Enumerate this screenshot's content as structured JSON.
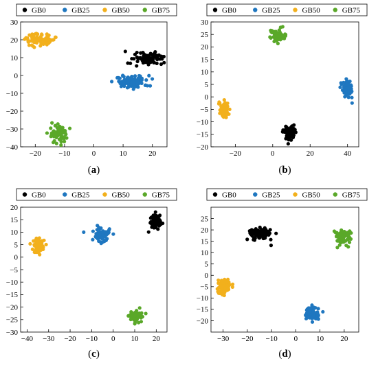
{
  "legend_items": [
    {
      "label": "GB0",
      "color": "#000000"
    },
    {
      "label": "GB25",
      "color": "#1f77c0"
    },
    {
      "label": "GB50",
      "color": "#f2b01c"
    },
    {
      "label": "GB75",
      "color": "#5aa829"
    }
  ],
  "chart_data": [
    {
      "type": "scatter",
      "caption": "(a)",
      "xlim": [
        -25,
        25
      ],
      "ylim": [
        -40,
        30
      ],
      "xticks": [
        -20,
        -10,
        0,
        10,
        20
      ],
      "yticks": [
        -40,
        -30,
        -20,
        -10,
        0,
        10,
        20,
        30
      ],
      "series": [
        {
          "name": "GB0",
          "color": "#000000",
          "cluster": {
            "cx": 18,
            "cy": 9,
            "sx": 2.6,
            "sy": 1.7,
            "n": 90
          }
        },
        {
          "name": "GB25",
          "color": "#1f77c0",
          "cluster": {
            "cx": 13,
            "cy": -3.5,
            "sx": 2.8,
            "sy": 1.8,
            "n": 90
          }
        },
        {
          "name": "GB50",
          "color": "#f2b01c",
          "cluster": {
            "cx": -18.5,
            "cy": 20,
            "sx": 2.6,
            "sy": 1.6,
            "n": 90
          }
        },
        {
          "name": "GB75",
          "color": "#5aa829",
          "cluster": {
            "cx": -12,
            "cy": -33,
            "sx": 1.6,
            "sy": 2.1,
            "n": 70
          }
        }
      ]
    },
    {
      "type": "scatter",
      "caption": "(b)",
      "xlim": [
        -33,
        46
      ],
      "ylim": [
        -20,
        30
      ],
      "xticks": [
        -20,
        0,
        20,
        40
      ],
      "yticks": [
        -20,
        -15,
        -10,
        -5,
        0,
        5,
        10,
        15,
        20,
        25,
        30
      ],
      "series": [
        {
          "name": "GB0",
          "color": "#000000",
          "cluster": {
            "cx": 9,
            "cy": -14.5,
            "sx": 1.6,
            "sy": 1.6,
            "n": 70
          }
        },
        {
          "name": "GB25",
          "color": "#1f77c0",
          "cluster": {
            "cx": 39.5,
            "cy": 3,
            "sx": 1.6,
            "sy": 1.7,
            "n": 70
          }
        },
        {
          "name": "GB50",
          "color": "#f2b01c",
          "cluster": {
            "cx": -26,
            "cy": -5.5,
            "sx": 1.4,
            "sy": 1.6,
            "n": 70
          }
        },
        {
          "name": "GB75",
          "color": "#5aa829",
          "cluster": {
            "cx": 3,
            "cy": 24.5,
            "sx": 2.0,
            "sy": 1.3,
            "n": 70
          }
        }
      ]
    },
    {
      "type": "scatter",
      "caption": "(c)",
      "xlim": [
        -43,
        25
      ],
      "ylim": [
        -30,
        20
      ],
      "xticks": [
        -40,
        -30,
        -20,
        -10,
        0,
        10,
        20
      ],
      "yticks": [
        -30,
        -25,
        -20,
        -15,
        -10,
        -5,
        0,
        5,
        10,
        15,
        20
      ],
      "series": [
        {
          "name": "GB0",
          "color": "#000000",
          "cluster": {
            "cx": 19.5,
            "cy": 14.5,
            "sx": 1.4,
            "sy": 1.6,
            "n": 70
          }
        },
        {
          "name": "GB25",
          "color": "#1f77c0",
          "cluster": {
            "cx": -5.5,
            "cy": 8.5,
            "sx": 1.9,
            "sy": 1.7,
            "n": 70
          }
        },
        {
          "name": "GB50",
          "color": "#f2b01c",
          "cluster": {
            "cx": -34.5,
            "cy": 4.5,
            "sx": 1.5,
            "sy": 1.6,
            "n": 70
          }
        },
        {
          "name": "GB75",
          "color": "#5aa829",
          "cluster": {
            "cx": 10.5,
            "cy": -23.5,
            "sx": 1.7,
            "sy": 1.3,
            "n": 70
          }
        }
      ]
    },
    {
      "type": "scatter",
      "caption": "(d)",
      "xlim": [
        -35,
        26
      ],
      "ylim": [
        -25,
        30
      ],
      "xticks": [
        -30,
        -20,
        -10,
        0,
        10,
        20
      ],
      "yticks": [
        -20,
        -15,
        -10,
        -5,
        0,
        5,
        10,
        15,
        20,
        25
      ],
      "series": [
        {
          "name": "GB0",
          "color": "#000000",
          "cluster": {
            "cx": -15,
            "cy": 18.5,
            "sx": 2.2,
            "sy": 1.2,
            "n": 90
          }
        },
        {
          "name": "GB25",
          "color": "#1f77c0",
          "cluster": {
            "cx": 7,
            "cy": -17,
            "sx": 1.6,
            "sy": 1.6,
            "n": 70
          }
        },
        {
          "name": "GB50",
          "color": "#f2b01c",
          "cluster": {
            "cx": -29.5,
            "cy": -5.5,
            "sx": 1.4,
            "sy": 2.0,
            "n": 70
          }
        },
        {
          "name": "GB75",
          "color": "#5aa829",
          "cluster": {
            "cx": 19.5,
            "cy": 17,
            "sx": 1.5,
            "sy": 1.6,
            "n": 70
          }
        }
      ]
    }
  ]
}
